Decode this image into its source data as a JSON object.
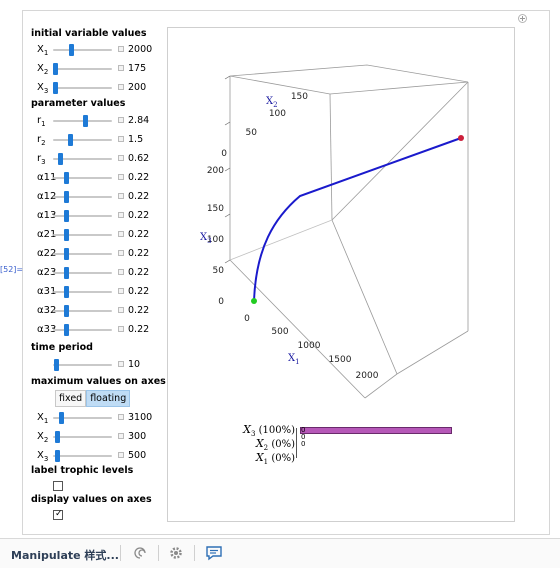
{
  "cell_label": "[52]=",
  "sections": {
    "initial": "initial variable values",
    "params": "parameter values",
    "time": "time period",
    "maxvals": "maximum values on axes",
    "trophic": "label trophic levels",
    "display": "display values on axes"
  },
  "initial_rows": [
    {
      "sym": "X",
      "sub": "1",
      "value": "2000",
      "pos": 0.3
    },
    {
      "sym": "X",
      "sub": "2",
      "value": "175",
      "pos": 0.03
    },
    {
      "sym": "X",
      "sub": "3",
      "value": "200",
      "pos": 0.04
    }
  ],
  "param_rows": [
    {
      "sym": "r",
      "sub": "1",
      "value": "2.84",
      "pos": 0.55
    },
    {
      "sym": "r",
      "sub": "2",
      "value": "1.5",
      "pos": 0.29
    },
    {
      "sym": "r",
      "sub": "3",
      "value": "0.62",
      "pos": 0.12
    },
    {
      "sym": "α11",
      "sub": "",
      "value": "0.22",
      "pos": 0.22
    },
    {
      "sym": "α12",
      "sub": "",
      "value": "0.22",
      "pos": 0.22
    },
    {
      "sym": "α13",
      "sub": "",
      "value": "0.22",
      "pos": 0.22
    },
    {
      "sym": "α21",
      "sub": "",
      "value": "0.22",
      "pos": 0.22
    },
    {
      "sym": "α22",
      "sub": "",
      "value": "0.22",
      "pos": 0.22
    },
    {
      "sym": "α23",
      "sub": "",
      "value": "0.22",
      "pos": 0.22
    },
    {
      "sym": "α31",
      "sub": "",
      "value": "0.22",
      "pos": 0.22
    },
    {
      "sym": "α32",
      "sub": "",
      "value": "0.22",
      "pos": 0.22
    },
    {
      "sym": "α33",
      "sub": "",
      "value": "0.22",
      "pos": 0.22
    }
  ],
  "time_row": {
    "value": "10",
    "pos": 0.05
  },
  "axis_mode": {
    "fixed": "fixed",
    "floating": "floating",
    "selected": "floating"
  },
  "max_rows": [
    {
      "sym": "X",
      "sub": "1",
      "value": "3100",
      "pos": 0.13
    },
    {
      "sym": "X",
      "sub": "2",
      "value": "300",
      "pos": 0.06
    },
    {
      "sym": "X",
      "sub": "3",
      "value": "500",
      "pos": 0.06
    }
  ],
  "checkboxes": {
    "trophic": false,
    "display": true
  },
  "plot": {
    "x1_label": "X",
    "x1_sub": "1",
    "x2_label": "X",
    "x2_sub": "2",
    "x3_label": "X",
    "x3_sub": "3",
    "x1_ticks": [
      "0",
      "500",
      "1000",
      "1500",
      "2000"
    ],
    "x2_ticks": [
      "0",
      "50",
      "100",
      "150"
    ],
    "x3_ticks": [
      "0",
      "50",
      "100",
      "150",
      "200"
    ],
    "curve_color": "#1a1acc",
    "start_color": "#22cc22",
    "end_color": "#cc1f3a"
  },
  "bars": {
    "items": [
      {
        "sym": "X",
        "sub": "3",
        "pct": "(100%)",
        "value": "0",
        "fraction": 1.0
      },
      {
        "sym": "X",
        "sub": "2",
        "pct": "(0%)",
        "value": "0",
        "fraction": 0.0
      },
      {
        "sym": "X",
        "sub": "1",
        "pct": "(0%)",
        "value": "0",
        "fraction": 0.0
      }
    ],
    "color": "#b658b8"
  },
  "toolbar": {
    "label": "Manipulate 样式..."
  }
}
